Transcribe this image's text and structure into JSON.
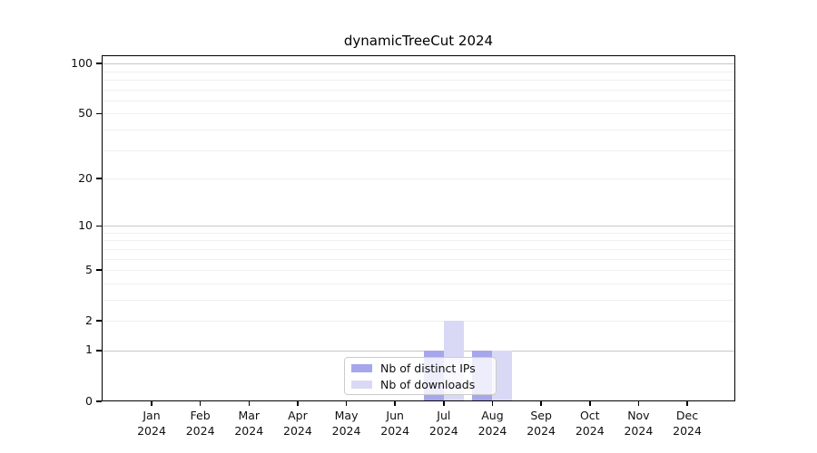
{
  "chart_data": {
    "type": "bar",
    "title": "dynamicTreeCut 2024",
    "categories": [
      {
        "month": "Jan",
        "year": "2024"
      },
      {
        "month": "Feb",
        "year": "2024"
      },
      {
        "month": "Mar",
        "year": "2024"
      },
      {
        "month": "Apr",
        "year": "2024"
      },
      {
        "month": "May",
        "year": "2024"
      },
      {
        "month": "Jun",
        "year": "2024"
      },
      {
        "month": "Jul",
        "year": "2024"
      },
      {
        "month": "Aug",
        "year": "2024"
      },
      {
        "month": "Sep",
        "year": "2024"
      },
      {
        "month": "Oct",
        "year": "2024"
      },
      {
        "month": "Nov",
        "year": "2024"
      },
      {
        "month": "Dec",
        "year": "2024"
      }
    ],
    "series": [
      {
        "key": "distinct-ips",
        "name": "Nb of distinct IPs",
        "color": "#a6a6ec",
        "values": [
          0,
          0,
          0,
          0,
          0,
          0,
          1,
          1,
          0,
          0,
          0,
          0
        ]
      },
      {
        "key": "downloads",
        "name": "Nb of downloads",
        "color": "#d9d9f6",
        "values": [
          0,
          0,
          0,
          0,
          0,
          0,
          2,
          1,
          0,
          0,
          0,
          0
        ]
      }
    ],
    "xlabel": "",
    "ylabel": "",
    "yscale": "log1p",
    "ylim": [
      0,
      112
    ],
    "yticks": [
      0,
      1,
      2,
      5,
      10,
      20,
      50,
      100
    ],
    "grid": {
      "major_at": [
        1,
        10,
        100
      ],
      "minor_at": [
        2,
        3,
        4,
        5,
        6,
        7,
        8,
        9,
        20,
        30,
        40,
        50,
        60,
        70,
        80,
        90
      ],
      "major_color": "#c6c6c6",
      "minor_color": "#efefef"
    },
    "legend_position": "bottom-center"
  }
}
